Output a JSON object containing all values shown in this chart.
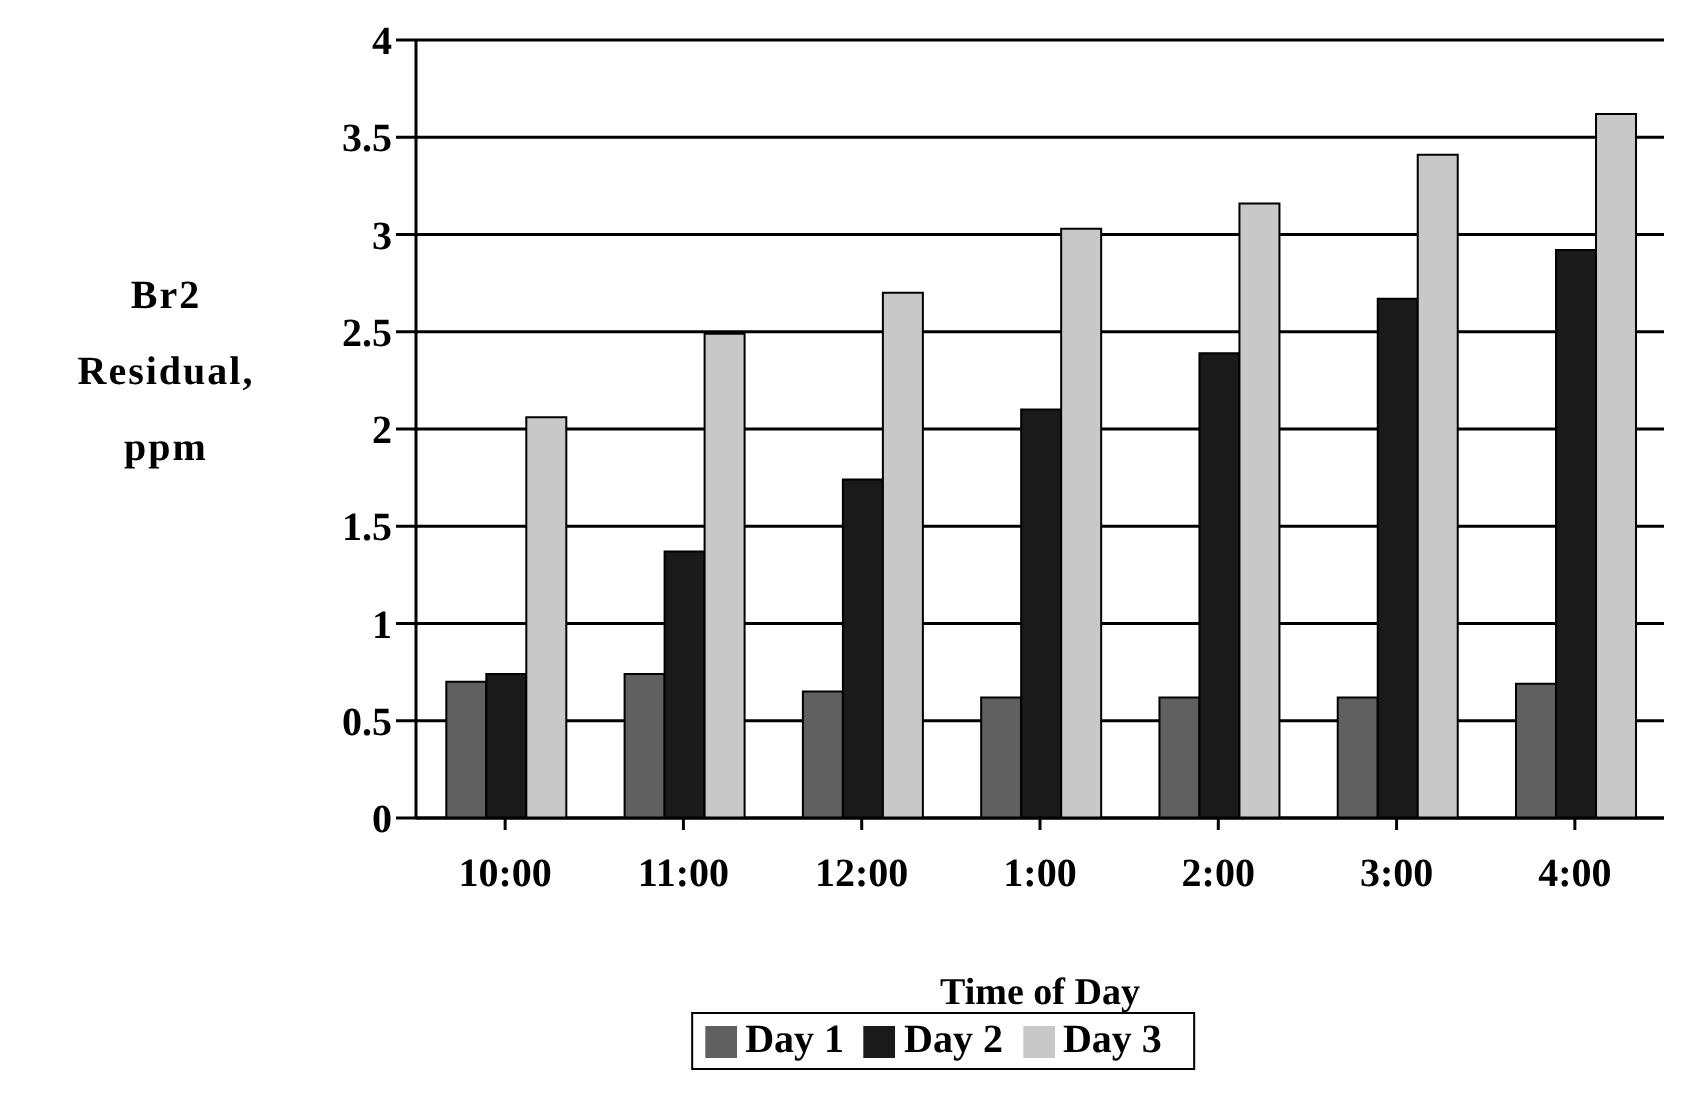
{
  "chart_data": {
    "type": "bar",
    "xlabel": "Time of Day",
    "ylabel": "Br2 Residual, ppm",
    "categories": [
      "10:00",
      "11:00",
      "12:00",
      "1:00",
      "2:00",
      "3:00",
      "4:00"
    ],
    "series": [
      {
        "name": "Day 1",
        "color": "#606060",
        "values": [
          0.7,
          0.74,
          0.65,
          0.62,
          0.62,
          0.62,
          0.69
        ]
      },
      {
        "name": "Day 2",
        "color": "#1a1a1a",
        "values": [
          0.74,
          1.37,
          1.74,
          2.1,
          2.39,
          2.67,
          2.92
        ]
      },
      {
        "name": "Day 3",
        "color": "#c8c8c8",
        "values": [
          2.06,
          2.49,
          2.7,
          3.03,
          3.16,
          3.41,
          3.62
        ]
      }
    ],
    "ylim": [
      0,
      4
    ],
    "yticks": [
      0,
      0.5,
      1,
      1.5,
      2,
      2.5,
      3,
      3.5,
      4
    ],
    "grid": "y",
    "legend": "bottom"
  }
}
